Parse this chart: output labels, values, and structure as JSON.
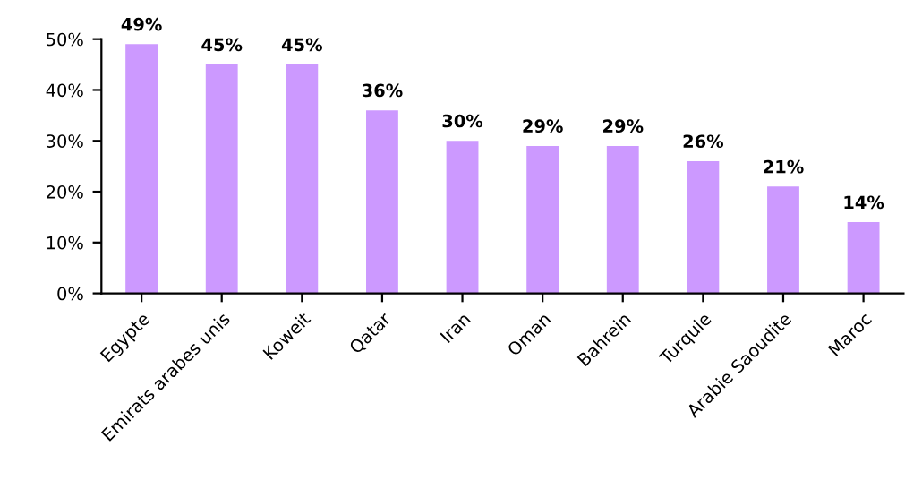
{
  "chart_data": {
    "type": "bar",
    "categories": [
      "Egypte",
      "Emirats arabes unis",
      "Koweit",
      "Qatar",
      "Iran",
      "Oman",
      "Bahrein",
      "Turquie",
      "Arabie Saoudite",
      "Maroc"
    ],
    "values": [
      49,
      45,
      45,
      36,
      30,
      29,
      29,
      26,
      21,
      14
    ],
    "value_labels": [
      "49%",
      "45%",
      "45%",
      "36%",
      "30%",
      "29%",
      "29%",
      "26%",
      "21%",
      "14%"
    ],
    "color": "#cc99ff",
    "ylim": [
      0,
      50
    ],
    "yticks": [
      {
        "value": 0,
        "label": "0%"
      },
      {
        "value": 10,
        "label": "10%"
      },
      {
        "value": 20,
        "label": "20%"
      },
      {
        "value": 30,
        "label": "30%"
      },
      {
        "value": 40,
        "label": "40%"
      },
      {
        "value": 50,
        "label": "50%"
      }
    ],
    "grid": false,
    "legend": false
  }
}
